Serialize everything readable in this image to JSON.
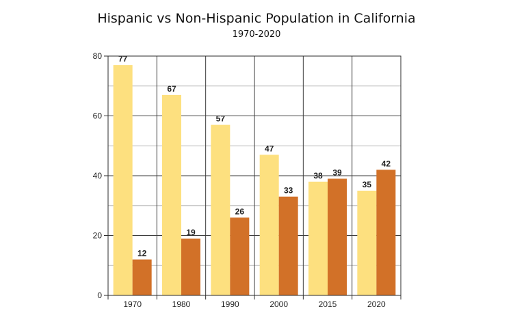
{
  "chart_data": {
    "type": "bar",
    "title": "Hispanic vs Non-Hispanic Population in California",
    "subtitle": "1970-2020",
    "xlabel": "",
    "ylabel": "",
    "categories": [
      "1970",
      "1980",
      "1990",
      "2000",
      "2015",
      "2020"
    ],
    "series": [
      {
        "values": [
          77,
          67,
          57,
          47,
          38,
          35
        ],
        "color": "#fde07f"
      },
      {
        "values": [
          12,
          19,
          26,
          33,
          39,
          42
        ],
        "color": "#d27128"
      }
    ],
    "ylim": [
      0,
      80
    ],
    "yticks": [
      0,
      20,
      40,
      60,
      80
    ],
    "grid": true,
    "legend": "none"
  }
}
